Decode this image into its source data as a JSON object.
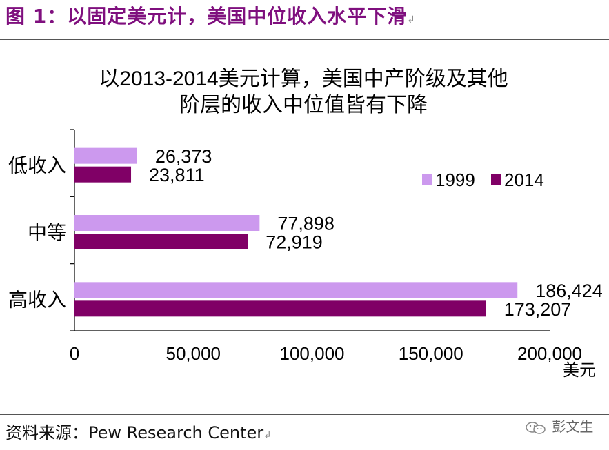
{
  "header": {
    "title": "图 1：以固定美元计，美国中位收入水平下滑",
    "mark": "↲"
  },
  "chart_data": {
    "type": "bar",
    "orientation": "horizontal",
    "title_lines": [
      "以2013-2014美元计算，美国中产阶级及其他",
      "阶层的收入中位值皆有下降"
    ],
    "categories": [
      "低收入",
      "中等",
      "高收入"
    ],
    "series": [
      {
        "name": "1999",
        "color": "#cc99ee",
        "values": [
          26373,
          77898,
          186424
        ],
        "labels": [
          "26,373",
          "77,898",
          "186,424"
        ]
      },
      {
        "name": "2014",
        "color": "#800066",
        "values": [
          23811,
          72919,
          173207
        ],
        "labels": [
          "23,811",
          "72,919",
          "173,207"
        ]
      }
    ],
    "xlim": [
      0,
      200000
    ],
    "xticks": [
      0,
      50000,
      100000,
      150000,
      200000
    ],
    "xtick_labels": [
      "0",
      "50,000",
      "100,000",
      "150,000",
      "200,000"
    ],
    "xunit": "美元",
    "legend_position": "right",
    "grid": false
  },
  "footer": {
    "source": "资料来源：Pew Research Center",
    "mark": "↲",
    "watermark": "彭文生",
    "watermark_icon": "wechat-icon"
  }
}
